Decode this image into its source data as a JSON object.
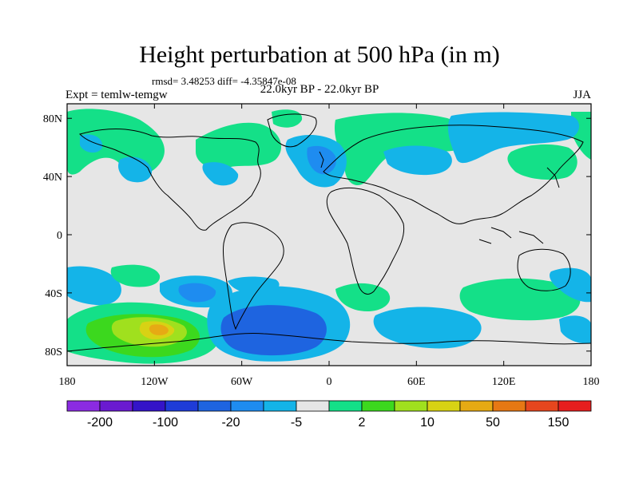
{
  "title": "Height perturbation at 500 hPa (in m)",
  "stats_line": "rmsd= 3.48253 diff= -4.35847e-08",
  "period": "22.0kyr BP - 22.0kyr BP",
  "experiment": "Expt = temlw-temgw",
  "season": "JJA",
  "map": {
    "background_color": "#e6e6e6",
    "lat_ticks": [
      "80N",
      "40N",
      "0",
      "40S",
      "80S"
    ],
    "lon_ticks": [
      "180",
      "120W",
      "60W",
      "0",
      "60E",
      "120E",
      "180"
    ]
  },
  "colorbar": {
    "colors": [
      "#8b2be2",
      "#6a1ad0",
      "#3414c8",
      "#1e3cd8",
      "#1e64e0",
      "#1e8cf0",
      "#14b4e8",
      "#e6e6e6",
      "#14e088",
      "#3cd81e",
      "#a0e01e",
      "#d8d214",
      "#e6aa14",
      "#e67814",
      "#e6461e",
      "#e61e1e"
    ],
    "labels": [
      "-200",
      "-100",
      "-20",
      "-5",
      "2",
      "10",
      "50",
      "150"
    ]
  },
  "chart_data": {
    "type": "heatmap",
    "title": "Height perturbation at 500 hPa (in m)",
    "subtitle": "22.0kyr BP - 22.0kyr BP",
    "annotations": [
      "rmsd= 3.48253 diff= -4.35847e-08",
      "Expt = temlw-temgw",
      "JJA"
    ],
    "xlabel": "",
    "ylabel": "",
    "x_ticks": [
      "180",
      "120W",
      "60W",
      "0",
      "60E",
      "120E",
      "180"
    ],
    "y_ticks": [
      "80N",
      "40N",
      "0",
      "40S",
      "80S"
    ],
    "colorbar_levels": [
      "-200",
      "-100",
      "-20",
      "-5",
      "2",
      "10",
      "50",
      "150"
    ]
  }
}
